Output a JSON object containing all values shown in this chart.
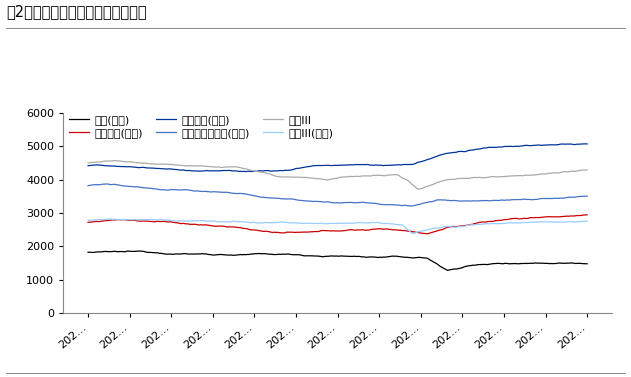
{
  "title": "图2：公用事业细分子板块涨跌情况",
  "ylim": [
    0,
    6000
  ],
  "yticks": [
    0,
    1000,
    2000,
    3000,
    4000,
    5000,
    6000
  ],
  "n_points": 280,
  "xtick_labels": [
    "202…",
    "202…",
    "202…",
    "202…",
    "202…",
    "202…",
    "202…",
    "202…",
    "202…",
    "202…",
    "202…",
    "202…",
    "202…"
  ],
  "series": [
    {
      "name": "环保(申万)",
      "color": "#000000",
      "linewidth": 0.9,
      "keypoints_x": [
        0.0,
        0.08,
        0.2,
        0.35,
        0.45,
        0.5,
        0.55,
        0.62,
        0.68,
        0.72,
        0.76,
        0.85,
        1.0
      ],
      "keypoints_y": [
        1820,
        1800,
        1780,
        1760,
        1730,
        1720,
        1700,
        1680,
        1650,
        1270,
        1430,
        1520,
        1570
      ]
    },
    {
      "name": "火力发电(申万)",
      "color": "#cc0000",
      "linewidth": 0.9,
      "keypoints_x": [
        0.0,
        0.05,
        0.12,
        0.3,
        0.38,
        0.45,
        0.52,
        0.6,
        0.65,
        0.68,
        0.72,
        0.85,
        1.0
      ],
      "keypoints_y": [
        2720,
        2820,
        2760,
        2530,
        2380,
        2350,
        2420,
        2450,
        2400,
        2330,
        2530,
        2780,
        2900
      ]
    },
    {
      "name": "水力发电(申万)",
      "color": "#003399",
      "linewidth": 0.9,
      "keypoints_x": [
        0.0,
        0.08,
        0.2,
        0.3,
        0.4,
        0.45,
        0.5,
        0.55,
        0.6,
        0.65,
        0.72,
        0.8,
        0.88,
        1.0
      ],
      "keypoints_y": [
        4420,
        4380,
        4280,
        4250,
        4280,
        4430,
        4450,
        4460,
        4430,
        4470,
        4800,
        4920,
        5000,
        5020
      ]
    },
    {
      "name": "新能源发电运营(长江)",
      "color": "#4472c4",
      "linewidth": 0.9,
      "keypoints_x": [
        0.0,
        0.05,
        0.15,
        0.25,
        0.35,
        0.42,
        0.5,
        0.55,
        0.6,
        0.65,
        0.7,
        0.8,
        1.0
      ],
      "keypoints_y": [
        3820,
        3850,
        3720,
        3650,
        3480,
        3380,
        3350,
        3350,
        3280,
        3230,
        3400,
        3450,
        3560
      ]
    },
    {
      "name": "水务III",
      "color": "#aaaaaa",
      "linewidth": 0.9,
      "keypoints_x": [
        0.0,
        0.05,
        0.12,
        0.2,
        0.3,
        0.38,
        0.44,
        0.48,
        0.52,
        0.58,
        0.62,
        0.64,
        0.66,
        0.72,
        0.8,
        0.9,
        1.0
      ],
      "keypoints_y": [
        4500,
        4530,
        4500,
        4490,
        4470,
        4230,
        4220,
        4120,
        4200,
        4220,
        4200,
        4000,
        3720,
        4050,
        4120,
        4200,
        4380
      ]
    },
    {
      "name": "燃气III(申万)",
      "color": "#99ccff",
      "linewidth": 0.9,
      "keypoints_x": [
        0.0,
        0.05,
        0.15,
        0.3,
        0.45,
        0.55,
        0.6,
        0.63,
        0.65,
        0.7,
        0.8,
        1.0
      ],
      "keypoints_y": [
        2780,
        2800,
        2770,
        2720,
        2680,
        2660,
        2640,
        2580,
        2300,
        2480,
        2580,
        2620
      ]
    }
  ],
  "background_color": "#ffffff",
  "title_fontsize": 10.5,
  "tick_fontsize": 8,
  "legend_fontsize": 8
}
